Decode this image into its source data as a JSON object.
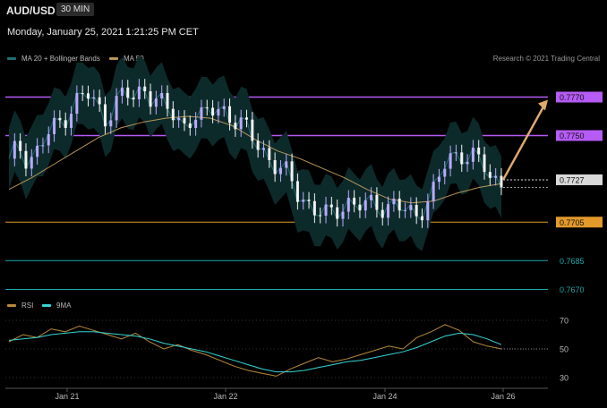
{
  "header": {
    "symbol": "AUD/USD",
    "timeframe": "30 MIN"
  },
  "datetime": "Monday, January 25, 2021 1:21:25 PM CET",
  "legend": {
    "ma20_bb": "MA 20 + Bollinger Bands",
    "ma50": "MA 50",
    "rsi": "RSI",
    "ma9": "9MA"
  },
  "credit": "Research © 2021 Trading Central",
  "colors": {
    "background": "#000000",
    "bull_candle": "#b9a9ff",
    "bear_candle": "#f2f2f2",
    "bollinger_fill": "#0d2a2b",
    "ma20": "#1f6f70",
    "ma50": "#b79658",
    "resistance": "#b65bf5",
    "support_orange": "#e39a2a",
    "support_teal": "#1aa7a7",
    "current": "#d9d9d9",
    "arrow": "#e0a96d",
    "rsi": "#b88a3a",
    "rsi_ma": "#34d6d6"
  },
  "chart_data": [
    {
      "type": "candlestick",
      "title": "AUD/USD 30 MIN",
      "x_ticks": [
        "Jan 21",
        "Jan 22",
        "Jan 24",
        "Jan 26"
      ],
      "ylim": [
        0.7665,
        0.7785
      ],
      "levels": [
        {
          "price": 0.777,
          "label": "0.7770",
          "kind": "resistance"
        },
        {
          "price": 0.775,
          "label": "0.7750",
          "kind": "resistance"
        },
        {
          "price": 0.7727,
          "label": "0.7727",
          "kind": "current"
        },
        {
          "price": 0.7705,
          "label": "0.7705",
          "kind": "support_orange"
        },
        {
          "price": 0.7685,
          "label": "0.7685",
          "kind": "support_teal"
        },
        {
          "price": 0.767,
          "label": "0.7670",
          "kind": "support_teal"
        }
      ],
      "close_series_approx": [
        0.7735,
        0.7745,
        0.7738,
        0.7742,
        0.775,
        0.7755,
        0.7762,
        0.7768,
        0.7772,
        0.7765,
        0.776,
        0.7767,
        0.7772,
        0.7768,
        0.7776,
        0.777,
        0.7765,
        0.776,
        0.7755,
        0.7762,
        0.7758,
        0.7763,
        0.7765,
        0.776,
        0.7755,
        0.775,
        0.7745,
        0.7738,
        0.7732,
        0.7728,
        0.772,
        0.7715,
        0.771,
        0.7707,
        0.7712,
        0.7716,
        0.7714,
        0.7712,
        0.7715,
        0.7713,
        0.7715,
        0.771,
        0.7707,
        0.7715,
        0.7722,
        0.7733,
        0.7738,
        0.7742,
        0.774,
        0.7735,
        0.7725,
        0.7727
      ],
      "ma50_approx": [
        0.7722,
        0.7728,
        0.7735,
        0.7742,
        0.7749,
        0.7754,
        0.7757,
        0.7759,
        0.776,
        0.7759,
        0.7755,
        0.7748,
        0.7742,
        0.7738,
        0.7733,
        0.7728,
        0.7722,
        0.7717,
        0.7715,
        0.7716,
        0.772,
        0.7723,
        0.7725
      ],
      "forecast_arrow": {
        "from": 0.7727,
        "to": 0.777
      }
    },
    {
      "type": "line",
      "title": "RSI",
      "series": [
        {
          "name": "RSI",
          "values": [
            55,
            60,
            58,
            64,
            62,
            66,
            63,
            60,
            57,
            61,
            55,
            50,
            53,
            49,
            46,
            42,
            38,
            35,
            33,
            31,
            36,
            40,
            44,
            41,
            43,
            46,
            49,
            52,
            50,
            58,
            62,
            67,
            63,
            55,
            52,
            50
          ]
        },
        {
          "name": "9MA",
          "values": [
            56,
            57,
            58,
            60,
            61,
            62,
            62,
            61,
            60,
            59,
            57,
            54,
            52,
            50,
            48,
            45,
            42,
            39,
            36,
            34,
            34,
            35,
            37,
            39,
            41,
            42,
            44,
            46,
            48,
            51,
            55,
            59,
            61,
            60,
            57,
            53
          ]
        }
      ],
      "y_ticks": [
        70,
        50,
        30
      ],
      "ylim": [
        25,
        75
      ]
    }
  ]
}
